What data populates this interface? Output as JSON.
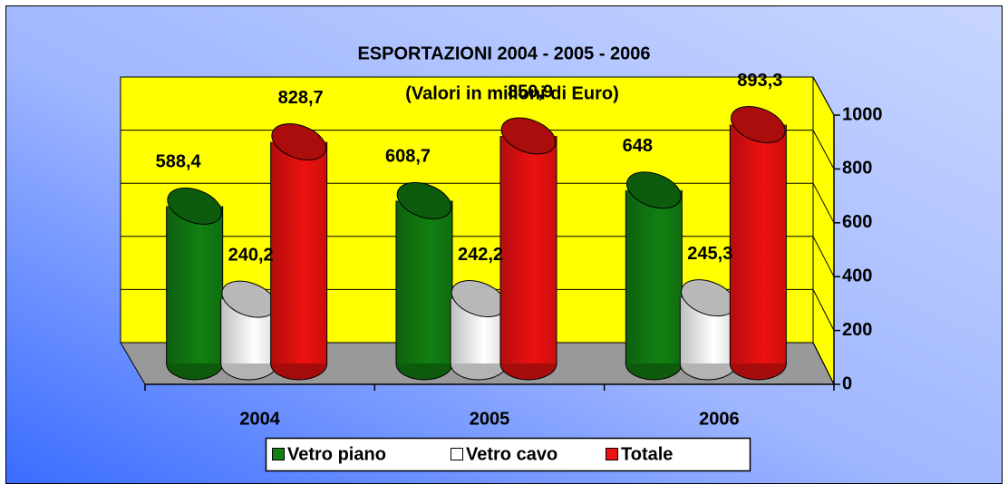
{
  "chart_data": {
    "type": "bar",
    "title": "ESPORTAZIONI 2004 - 2005 - 2006",
    "subtitle": "(Valori in milioni di Euro)",
    "categories": [
      "2004",
      "2005",
      "2006"
    ],
    "series": [
      {
        "name": "Vetro piano",
        "color": "#128012",
        "values": [
          588.4,
          608.7,
          648
        ],
        "value_labels": [
          "588,4",
          "608,7",
          "648"
        ]
      },
      {
        "name": "Vetro cavo",
        "color": "#ffffff",
        "values": [
          240.2,
          242.2,
          245.3
        ],
        "value_labels": [
          "240,2",
          "242,2",
          "245,3"
        ]
      },
      {
        "name": "Totale",
        "color": "#ee1111",
        "values": [
          828.7,
          850.9,
          893.3
        ],
        "value_labels": [
          "828,7",
          "850,9",
          "893,3"
        ]
      }
    ],
    "ylim": [
      0,
      1000
    ],
    "yticks": [
      0,
      200,
      400,
      600,
      800,
      1000
    ],
    "grid": true,
    "legend": "bottom"
  }
}
